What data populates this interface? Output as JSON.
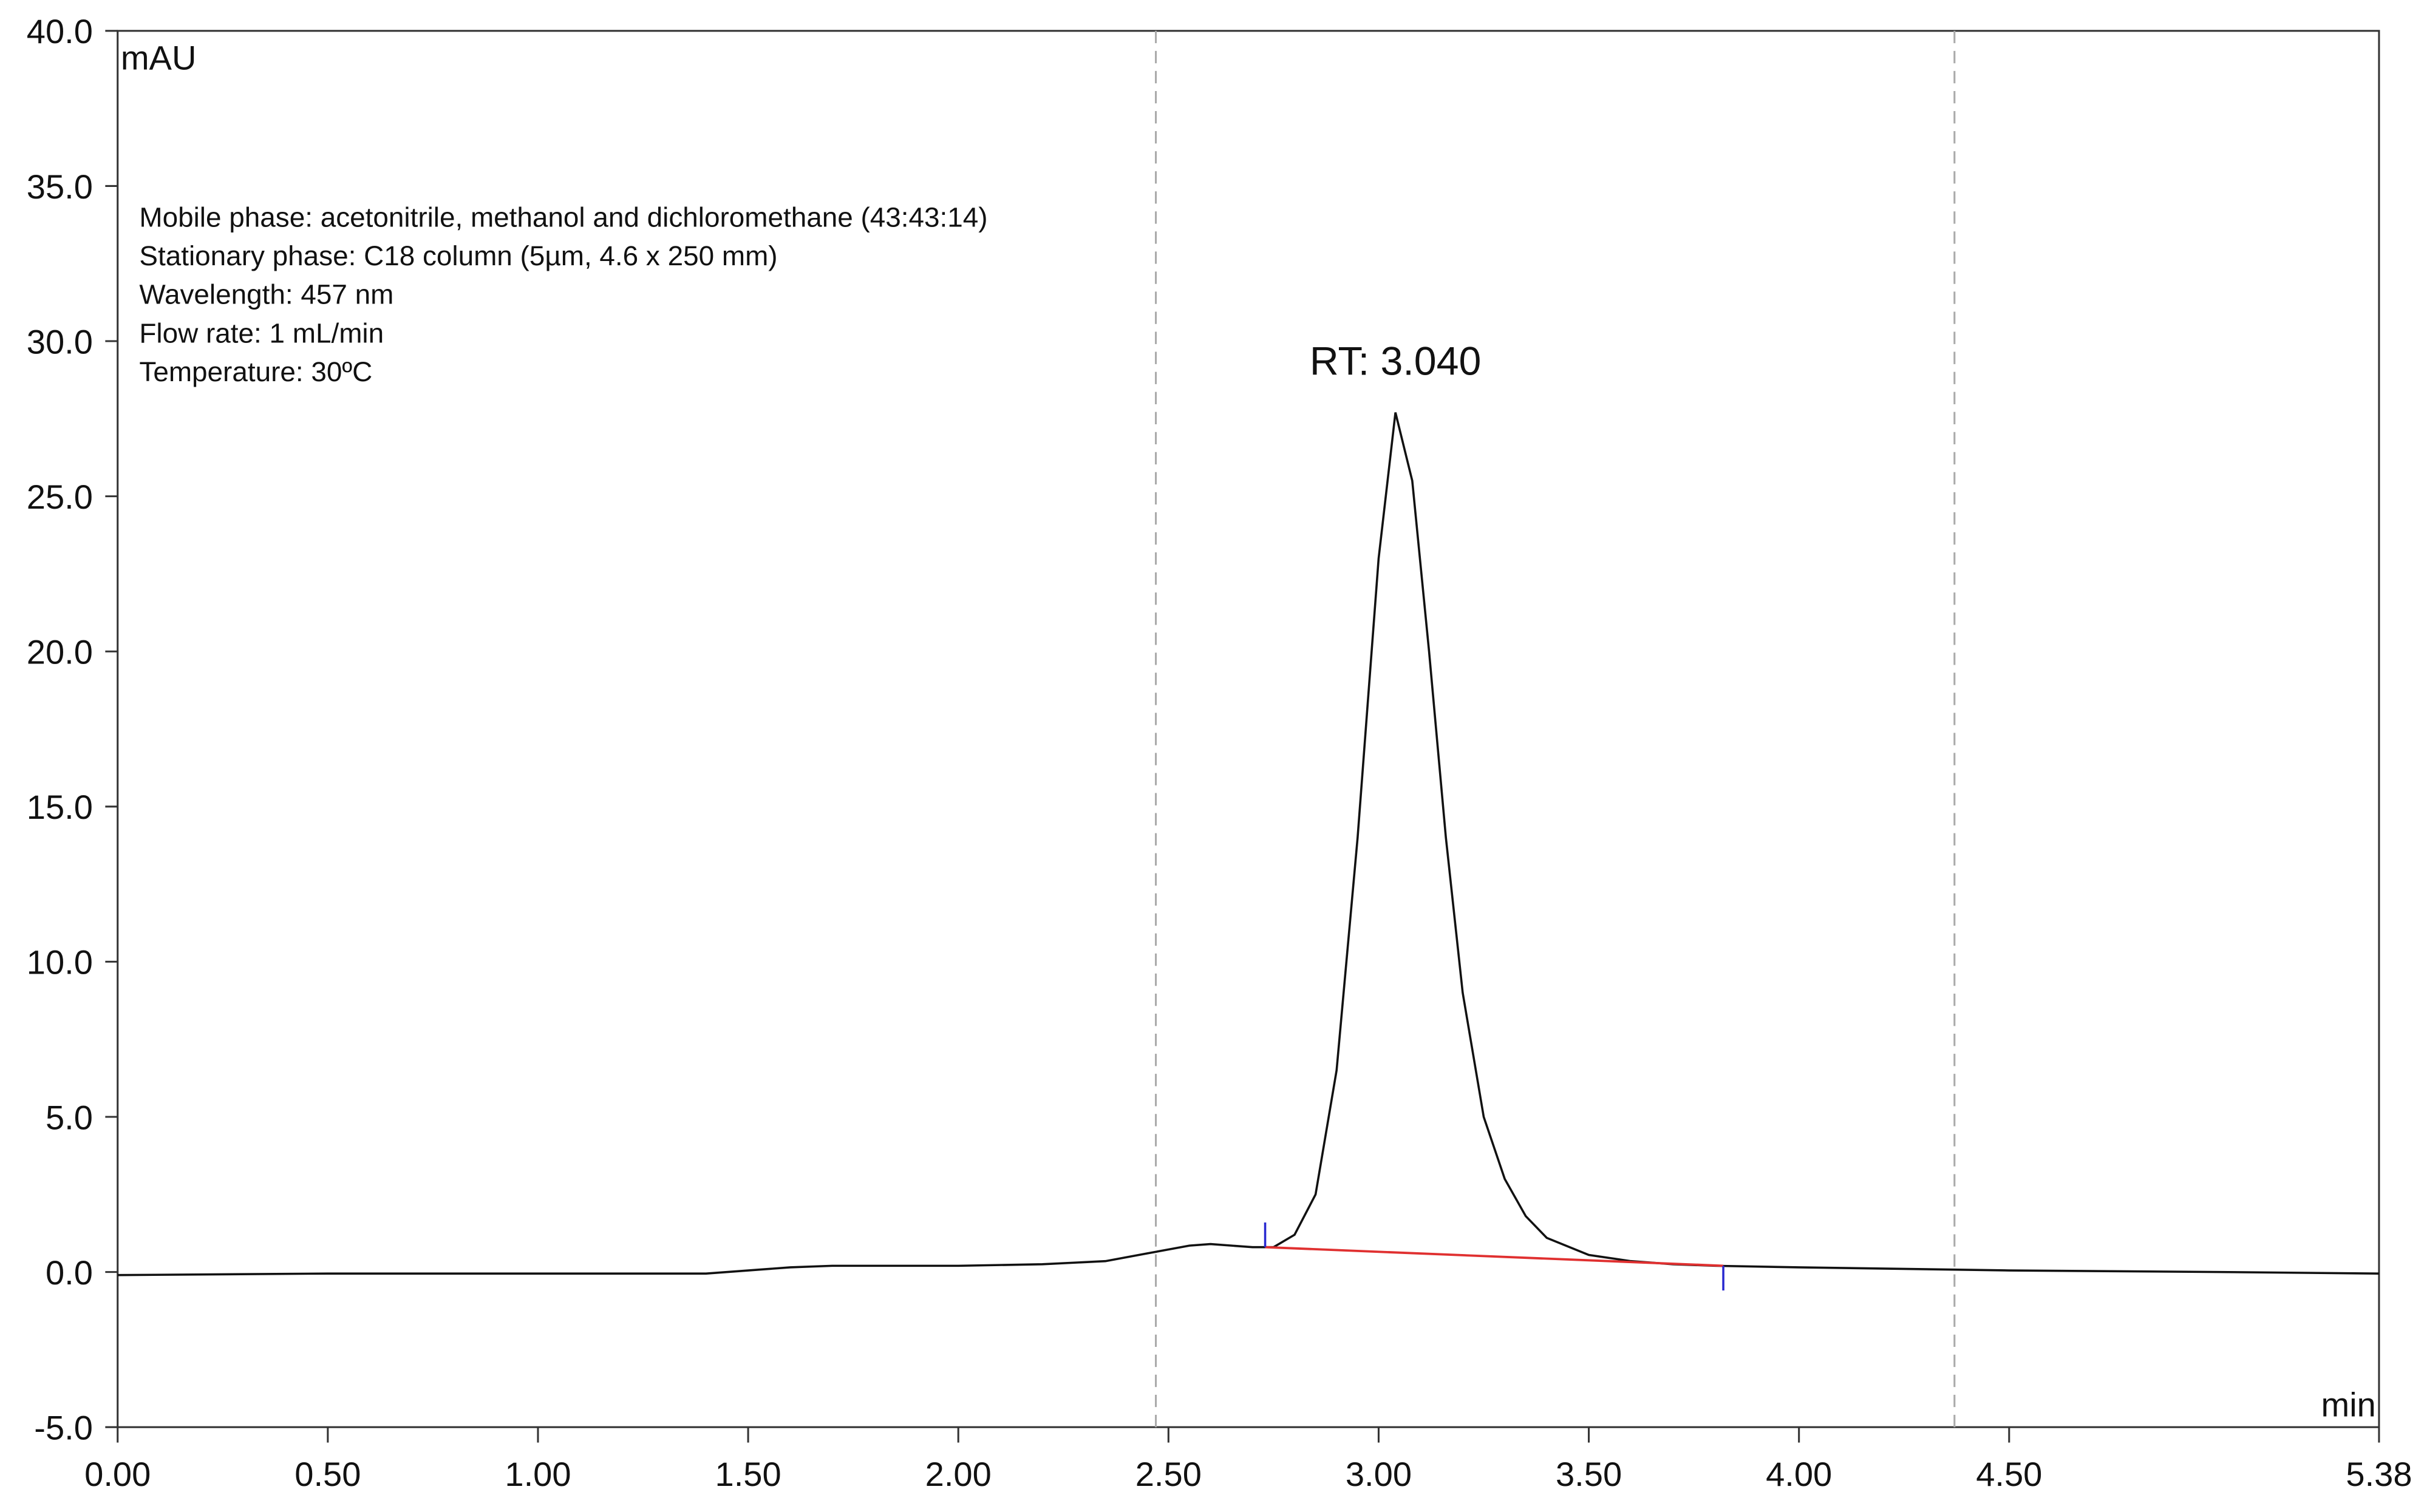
{
  "chart_data": {
    "type": "line",
    "y_unit": "mAU",
    "x_unit": "min",
    "annotation": "RT: 3.040",
    "annotation_x": 3.04,
    "info_lines": [
      "Mobile phase: acetonitrile, methanol and dichloromethane (43:43:14)",
      "Stationary phase: C18 column (5µm, 4.6 x 250 mm)",
      "Wavelength: 457 nm",
      "Flow rate: 1 mL/min",
      "Temperature: 30ºC"
    ],
    "x": [
      0,
      0.5,
      1.0,
      1.4,
      1.5,
      1.6,
      1.7,
      2.0,
      2.2,
      2.35,
      2.45,
      2.55,
      2.6,
      2.65,
      2.7,
      2.75,
      2.8,
      2.85,
      2.9,
      2.95,
      3.0,
      3.04,
      3.08,
      3.12,
      3.16,
      3.2,
      3.25,
      3.3,
      3.35,
      3.4,
      3.5,
      3.6,
      3.7,
      3.8,
      4.0,
      4.5,
      5.0,
      5.38
    ],
    "series": [
      {
        "color": "#111111",
        "values": [
          -0.1,
          -0.05,
          -0.05,
          -0.05,
          0.05,
          0.15,
          0.2,
          0.2,
          0.25,
          0.35,
          0.6,
          0.85,
          0.9,
          0.85,
          0.8,
          0.8,
          1.2,
          2.5,
          6.5,
          14,
          23,
          27.7,
          25.5,
          20,
          14,
          9,
          5,
          3,
          1.8,
          1.1,
          0.55,
          0.35,
          0.25,
          0.2,
          0.15,
          0.05,
          0.0,
          -0.05
        ]
      }
    ],
    "baseline": {
      "x": [
        2.73,
        3.82
      ],
      "y": [
        0.8,
        0.2
      ],
      "color": "#e03030",
      "marker_color": "#2a2ad0"
    },
    "window_lines": [
      2.47,
      4.37
    ],
    "xlim": [
      0,
      5.38
    ],
    "xticks": [
      {
        "value": 0,
        "label": "0.00"
      },
      {
        "value": 0.5,
        "label": "0.50"
      },
      {
        "value": 1,
        "label": "1.00"
      },
      {
        "value": 1.5,
        "label": "1.50"
      },
      {
        "value": 2,
        "label": "2.00"
      },
      {
        "value": 2.5,
        "label": "2.50"
      },
      {
        "value": 3,
        "label": "3.00"
      },
      {
        "value": 3.5,
        "label": "3.50"
      },
      {
        "value": 4,
        "label": "4.00"
      },
      {
        "value": 4.5,
        "label": "4.50"
      },
      {
        "value": 5.38,
        "label": "5.38"
      }
    ],
    "ylim": [
      -5,
      40
    ],
    "yticks": [
      {
        "value": -5,
        "label": "-5.0"
      },
      {
        "value": 0,
        "label": "0.0"
      },
      {
        "value": 5,
        "label": "5.0"
      },
      {
        "value": 10,
        "label": "10.0"
      },
      {
        "value": 15,
        "label": "15.0"
      },
      {
        "value": 20,
        "label": "20.0"
      },
      {
        "value": 25,
        "label": "25.0"
      },
      {
        "value": 30,
        "label": "30.0"
      },
      {
        "value": 35,
        "label": "35.0"
      },
      {
        "value": 40,
        "label": "40.0"
      }
    ]
  }
}
